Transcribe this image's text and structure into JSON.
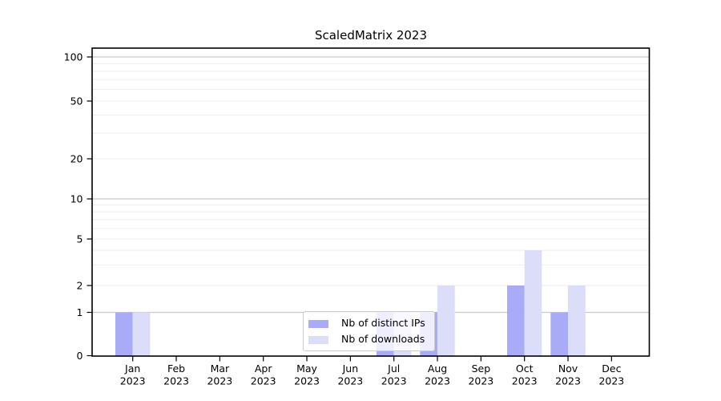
{
  "chart_data": {
    "type": "bar",
    "title": "ScaledMatrix 2023",
    "categories": [
      "Jan",
      "Feb",
      "Mar",
      "Apr",
      "May",
      "Jun",
      "Jul",
      "Aug",
      "Sep",
      "Oct",
      "Nov",
      "Dec"
    ],
    "category_year": "2023",
    "series": [
      {
        "name": "Nb of distinct IPs",
        "color": "#a9abf7",
        "values": [
          1,
          0,
          0,
          0,
          0,
          0,
          1,
          1,
          0,
          2,
          1,
          0
        ]
      },
      {
        "name": "Nb of downloads",
        "color": "#dcddf9",
        "values": [
          1,
          0,
          0,
          0,
          0,
          0,
          1,
          2,
          0,
          4,
          2,
          0
        ]
      }
    ],
    "y_axis": {
      "ticks": [
        0,
        1,
        2,
        5,
        10,
        20,
        50,
        100
      ],
      "scale": "log-like",
      "major_gridlines": [
        1,
        10,
        100
      ],
      "minor_gridlines": [
        2,
        3,
        4,
        5,
        6,
        7,
        8,
        9,
        20,
        30,
        40,
        50,
        60,
        70,
        80,
        90
      ]
    },
    "xlabel": "",
    "ylabel": "",
    "ylim": [
      0,
      120
    ],
    "grid": true,
    "legend_position": "lower-center"
  },
  "colors": {
    "background": "#ffffff",
    "spine": "#000000",
    "major_grid": "#c9c9c9",
    "minor_grid": "#ededed",
    "text": "#000000",
    "legend_border": "#cccccc"
  }
}
